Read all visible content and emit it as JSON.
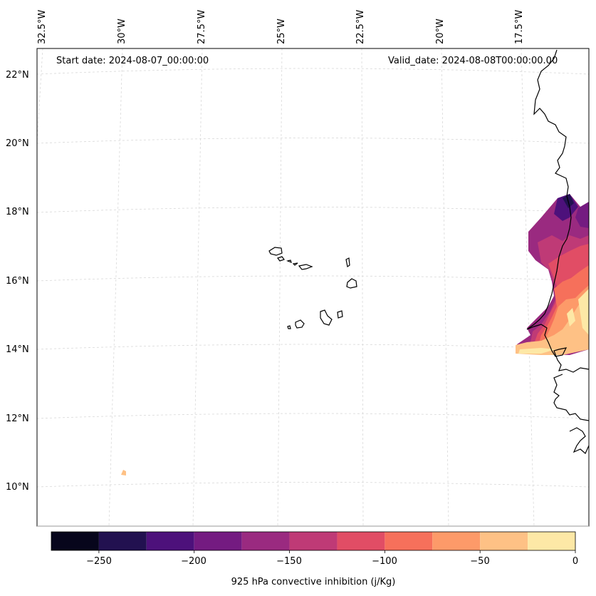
{
  "map": {
    "start_label": "Start date:",
    "start_value": "2024-08-07_00:00:00",
    "valid_label": "Valid_date:",
    "valid_value": "2024-08-08T00:00:00.00",
    "lat_labels": [
      "22°N",
      "20°N",
      "18°N",
      "16°N",
      "14°N",
      "12°N",
      "10°N"
    ],
    "lon_labels": [
      "32.5°W",
      "30°W",
      "27.5°W",
      "25°W",
      "22.5°W",
      "20°W",
      "17.5°W"
    ],
    "gridlines": true,
    "coastline_color": "#000000"
  },
  "colorbar": {
    "label": "925 hPa convective inhibition (j/Kg)",
    "ticks": [
      "−250",
      "−200",
      "−150",
      "−100",
      "−50",
      "0"
    ],
    "levels": [
      -275,
      -250,
      -225,
      -200,
      -175,
      -150,
      -125,
      -100,
      -75,
      -50,
      -25,
      0
    ],
    "colors": [
      "#07061c",
      "#221150",
      "#4d117b",
      "#741b81",
      "#9a2a80",
      "#bf3a76",
      "#e14d65",
      "#f6705b",
      "#fd9a69",
      "#fec185",
      "#fde8a6"
    ],
    "colormap": "magma"
  }
}
